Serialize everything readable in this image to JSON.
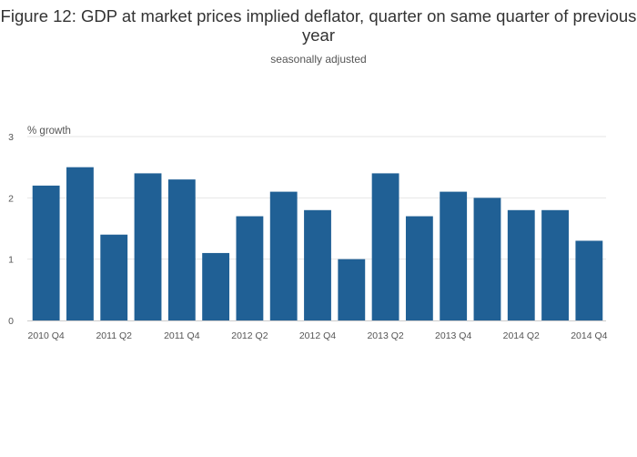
{
  "chart_data": {
    "type": "bar",
    "title": "Figure 12: GDP at market prices implied deflator, quarter on same quarter of previous year",
    "subtitle": "seasonally adjusted",
    "ylabel": "% growth",
    "xlabel": "",
    "ylim": [
      0,
      3
    ],
    "yticks": [
      0,
      1,
      2,
      3
    ],
    "categories": [
      "2010 Q4",
      "2011 Q1",
      "2011 Q2",
      "2011 Q3",
      "2011 Q4",
      "2012 Q1",
      "2012 Q2",
      "2012 Q3",
      "2012 Q4",
      "2013 Q1",
      "2013 Q2",
      "2013 Q3",
      "2013 Q4",
      "2014 Q1",
      "2014 Q2",
      "2014 Q3",
      "2014 Q4"
    ],
    "xtick_labels": [
      "2010 Q4",
      "2011 Q2",
      "2011 Q4",
      "2012 Q2",
      "2012 Q4",
      "2013 Q2",
      "2013 Q4",
      "2014 Q2",
      "2014 Q4"
    ],
    "values": [
      2.2,
      2.5,
      1.4,
      2.4,
      2.3,
      1.1,
      1.7,
      2.1,
      1.8,
      1.0,
      2.4,
      1.7,
      2.1,
      2.0,
      1.8,
      1.8,
      1.3
    ],
    "grid": true,
    "legend": "none",
    "colors": {
      "bar": "#206095",
      "grid": "#e6e6e6",
      "text": "#555555"
    }
  }
}
